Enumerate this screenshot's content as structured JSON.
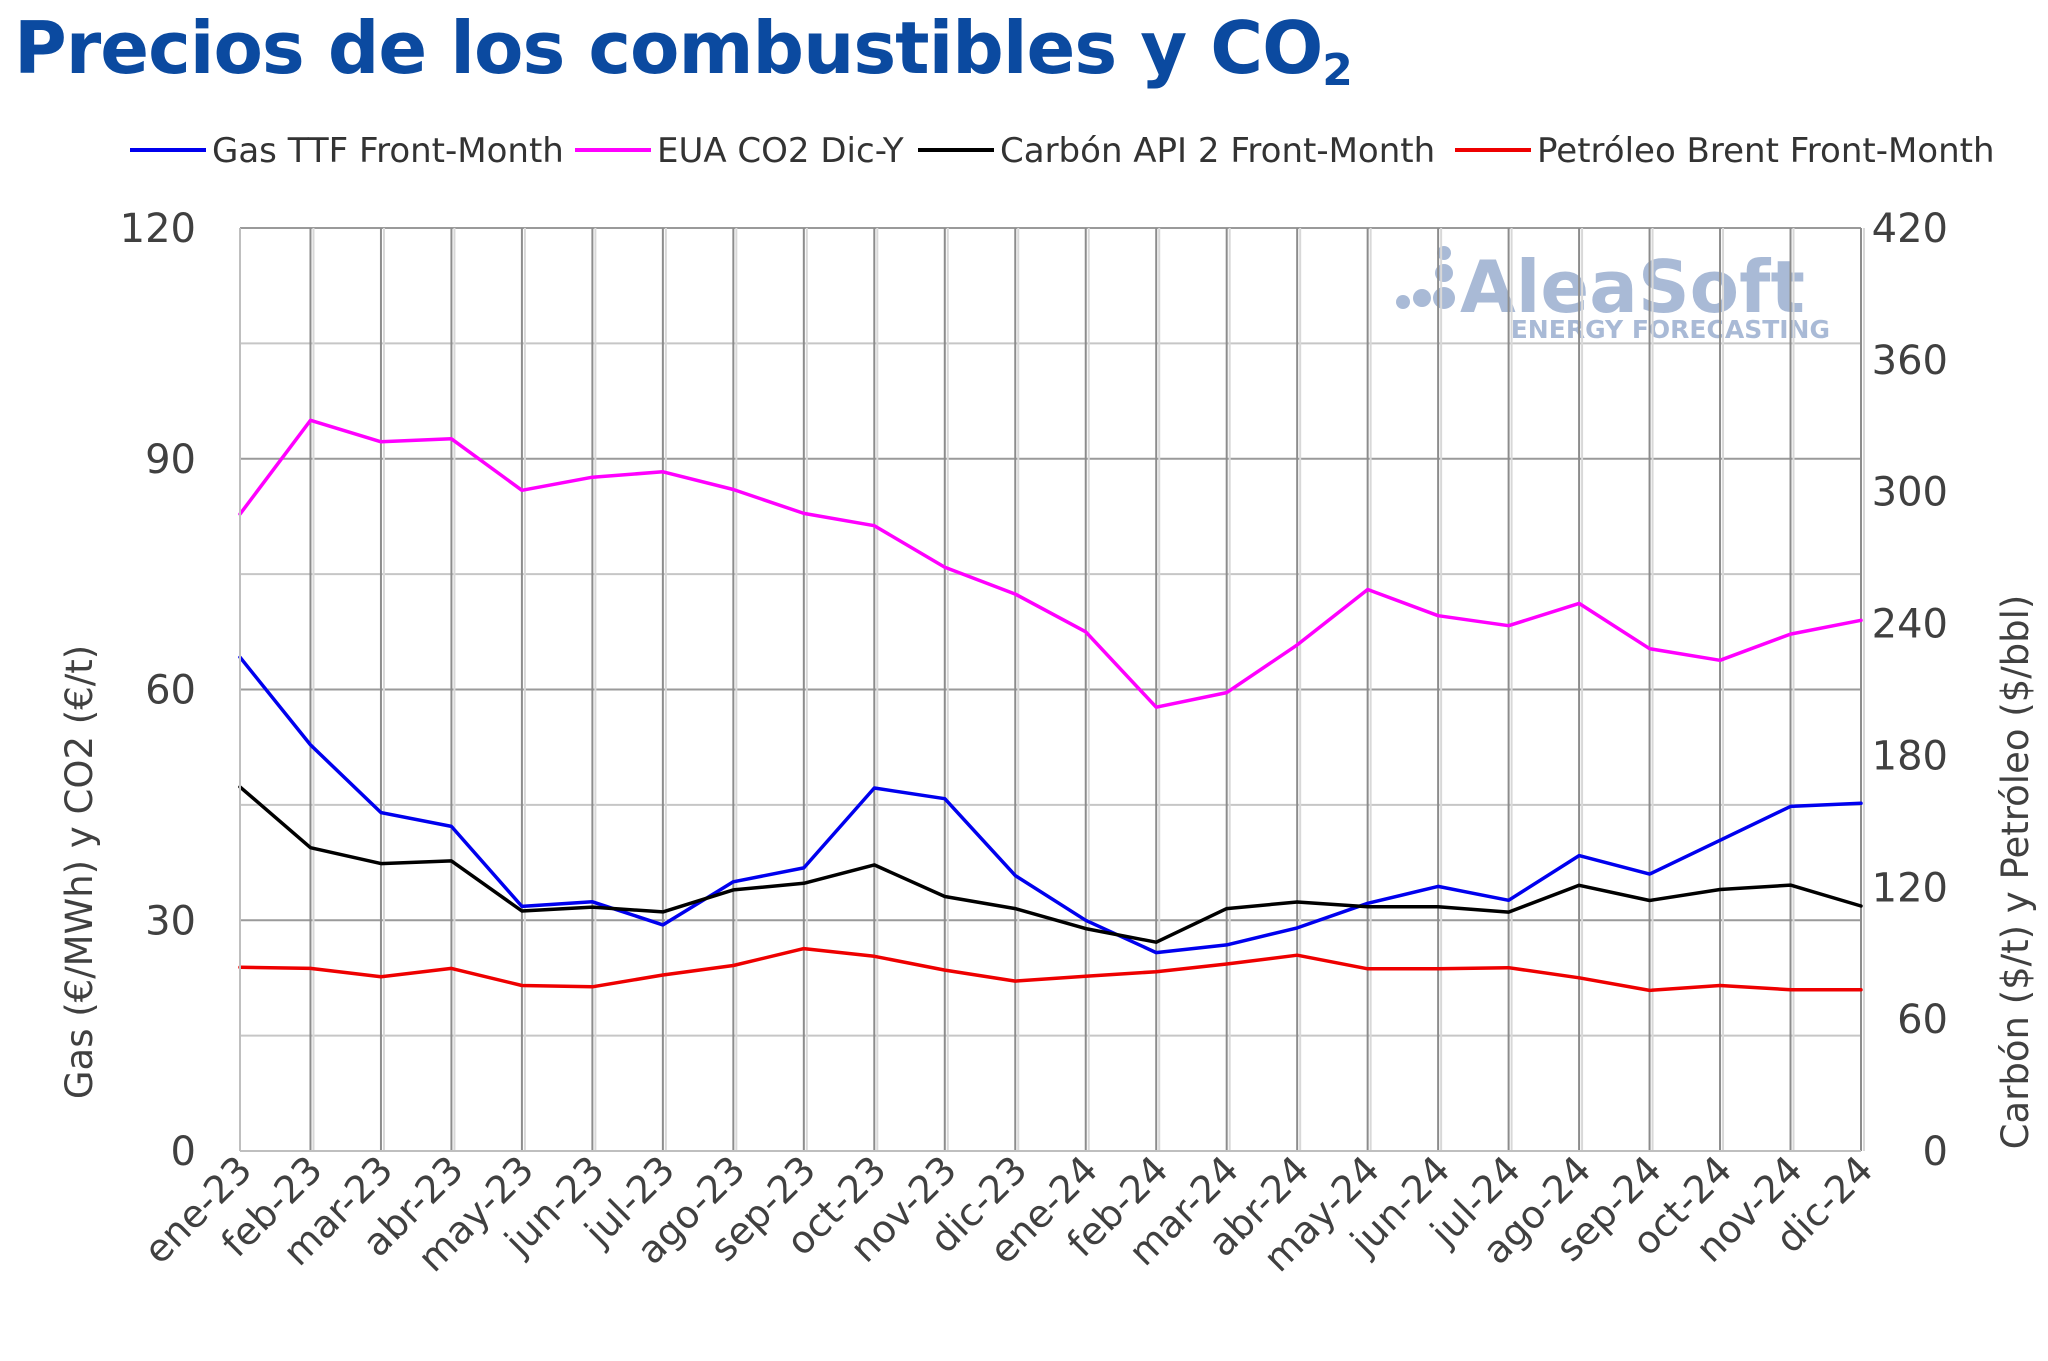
{
  "title_main": "Precios de los combustibles y CO",
  "title_sub": "2",
  "watermark": {
    "brand": "AleaSoft",
    "tagline": "ENERGY FORECASTING"
  },
  "chart_data": {
    "type": "line",
    "ylabel_left": "Gas (€/MWh) y CO2 (€/t)",
    "ylabel_right": "Carbón ($/t) y Petróleo ($/bbl)",
    "ylim_left": [
      0,
      120
    ],
    "ylim_right": [
      0,
      420
    ],
    "yticks_left": [
      0,
      30,
      60,
      90,
      120
    ],
    "yticks_right": [
      0,
      60,
      120,
      180,
      240,
      300,
      360,
      420
    ],
    "grid": true,
    "legend_position": "top",
    "categories": [
      "ene-23",
      "feb-23",
      "mar-23",
      "abr-23",
      "may-23",
      "jun-23",
      "jul-23",
      "ago-23",
      "sep-23",
      "oct-23",
      "nov-23",
      "dic-23",
      "ene-24",
      "feb-24",
      "mar-24",
      "abr-24",
      "may-24",
      "jun-24",
      "jul-24",
      "ago-24",
      "sep-24",
      "oct-24",
      "nov-24",
      "dic-24"
    ],
    "series": [
      {
        "name": "Gas TTF Front-Month",
        "axis": "left",
        "color": "#0000ee",
        "values": [
          64.2,
          52.8,
          44.0,
          42.2,
          31.8,
          32.4,
          29.4,
          35.0,
          36.8,
          47.2,
          45.8,
          35.8,
          30.0,
          25.8,
          26.8,
          29.0,
          32.2,
          34.4,
          32.6,
          38.4,
          36.0,
          40.4,
          44.8,
          45.2
        ]
      },
      {
        "name": "EUA CO2 Dic-Y",
        "axis": "left",
        "color": "#ff00ff",
        "values": [
          82.8,
          95.0,
          92.2,
          92.6,
          85.9,
          87.6,
          88.3,
          86.0,
          82.9,
          81.3,
          75.9,
          72.4,
          67.5,
          57.7,
          59.6,
          65.8,
          73.0,
          69.6,
          68.3,
          71.2,
          65.3,
          63.8,
          67.2,
          69.0
        ]
      },
      {
        "name": "Carbón API 2 Front-Month",
        "axis": "right",
        "color": "#000000",
        "values": [
          165.7,
          138.0,
          130.8,
          132.0,
          109.2,
          111.0,
          108.8,
          118.8,
          121.8,
          130.2,
          115.8,
          110.3,
          101.2,
          95.0,
          110.3,
          113.3,
          111.1,
          111.1,
          108.7,
          120.9,
          114.0,
          119.0,
          121.0,
          111.5
        ]
      },
      {
        "name": "Petróleo Brent Front-Month",
        "axis": "right",
        "color": "#ee0000",
        "values": [
          83.6,
          83.1,
          79.3,
          83.1,
          75.3,
          74.7,
          80.1,
          84.4,
          92.1,
          88.6,
          82.3,
          77.3,
          79.5,
          81.6,
          85.1,
          89.1,
          82.9,
          82.9,
          83.4,
          78.8,
          73.1,
          75.3,
          73.4,
          73.4
        ]
      }
    ]
  }
}
